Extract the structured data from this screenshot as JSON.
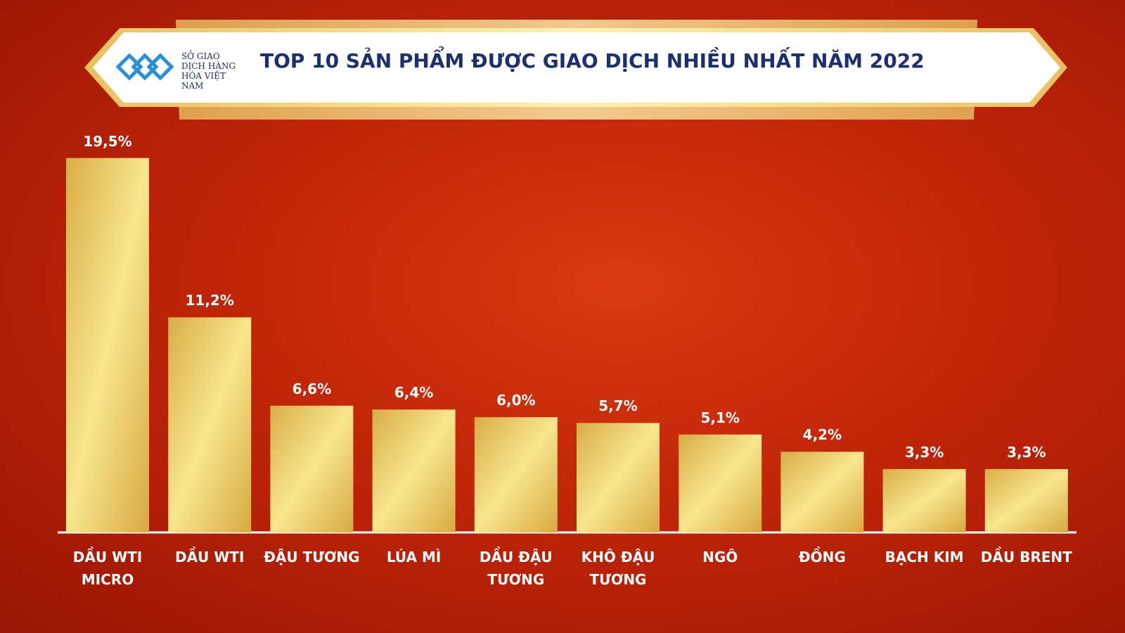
{
  "logo": {
    "text": "SỞ GIAO DỊCH HÀNG HÓA VIỆT NAM"
  },
  "chart_data": {
    "type": "bar",
    "title": "TOP 10 SẢN PHẨM ĐƯỢC GIAO DỊCH NHIỀU NHẤT NĂM 2022",
    "categories": [
      "DẦU WTI MICRO",
      "DẦU WTI",
      "ĐẬU TƯƠNG",
      "LÚA MÌ",
      "DẦU ĐẬU TƯƠNG",
      "KHÔ ĐẬU TƯƠNG",
      "NGÔ",
      "ĐỒNG",
      "BẠCH KIM",
      "DẦU BRENT"
    ],
    "values": [
      19.5,
      11.2,
      6.6,
      6.4,
      6.0,
      5.7,
      5.1,
      4.2,
      3.3,
      3.3
    ],
    "value_labels": [
      "19,5%",
      "11,2%",
      "6,6%",
      "6,4%",
      "6,0%",
      "5,7%",
      "5,1%",
      "4,2%",
      "3,3%",
      "3,3%"
    ],
    "color": "#f2d771"
  }
}
